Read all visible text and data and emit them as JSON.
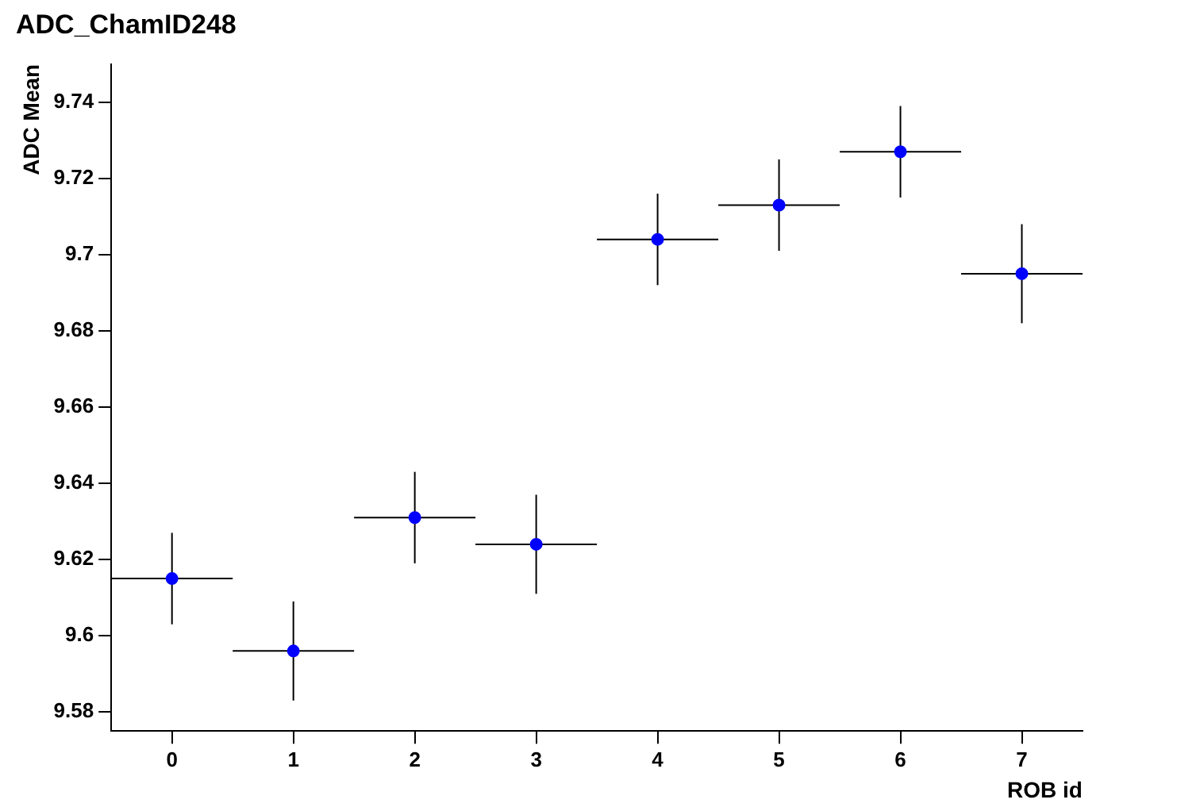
{
  "chart_data": {
    "type": "scatter",
    "title": "ADC_ChamID248",
    "xlabel": "ROB id",
    "ylabel": "ADC Mean",
    "x": [
      0,
      1,
      2,
      3,
      4,
      5,
      6,
      7
    ],
    "series": [
      {
        "color": "#0000ff",
        "values": [
          9.615,
          9.596,
          9.631,
          9.624,
          9.704,
          9.713,
          9.727,
          9.695
        ],
        "errors": [
          0.012,
          0.013,
          0.012,
          0.013,
          0.012,
          0.012,
          0.012,
          0.013
        ],
        "xerrors": [
          0.5,
          0.5,
          0.5,
          0.5,
          0.5,
          0.5,
          0.5,
          0.5
        ]
      }
    ],
    "xlim": [
      -0.5,
      7.5
    ],
    "xticks": [
      0,
      1,
      2,
      3,
      4,
      5,
      6,
      7
    ],
    "ylim": [
      9.575,
      9.75
    ],
    "yticks": [
      9.58,
      9.6,
      9.62,
      9.64,
      9.66,
      9.68,
      9.7,
      9.72,
      9.74
    ],
    "marker": "circle",
    "grid": false,
    "legend": false
  }
}
